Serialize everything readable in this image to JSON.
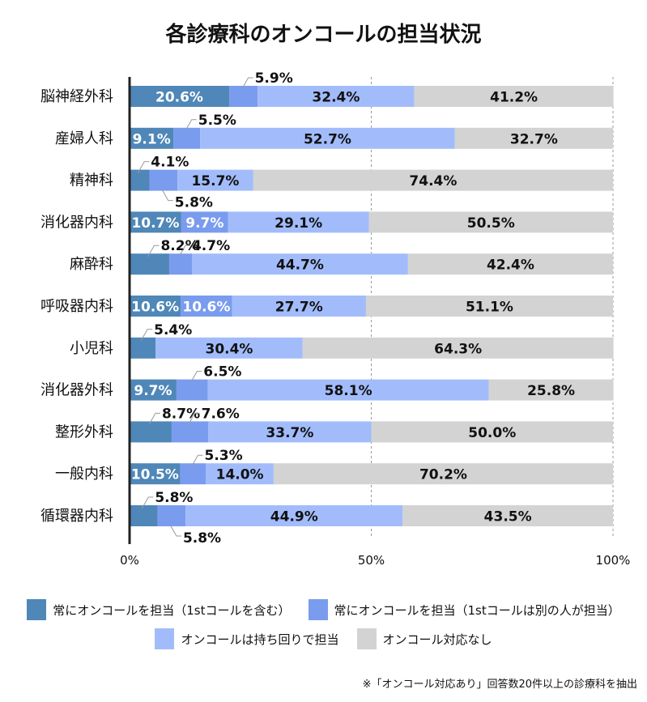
{
  "chart_data": {
    "type": "bar",
    "orientation": "horizontal",
    "stacked": true,
    "title": "各診療科のオンコールの担当状況",
    "categories": [
      "脳神経外科",
      "産婦人科",
      "精神科",
      "消化器内科",
      "麻酔科",
      "呼吸器内科",
      "小児科",
      "消化器外科",
      "整形外科",
      "一般内科",
      "循環器内科"
    ],
    "series": [
      {
        "name": "常にオンコールを担当（1stコールを含む）",
        "color": "#4f87b8",
        "values": [
          20.6,
          9.1,
          4.1,
          10.7,
          8.2,
          10.6,
          5.4,
          9.7,
          8.7,
          10.5,
          5.8
        ],
        "label_pos": [
          "in",
          "in",
          "above",
          "in",
          "above",
          "in",
          "above",
          "in",
          "above",
          "in",
          "above"
        ]
      },
      {
        "name": "常にオンコールを担当（1stコールは別の人が担当）",
        "color": "#7a9cee",
        "values": [
          5.9,
          5.5,
          5.8,
          9.7,
          4.7,
          10.6,
          0,
          6.5,
          7.6,
          5.3,
          5.8
        ],
        "label_pos": [
          "above",
          "above",
          "below",
          "in",
          "above",
          "in",
          "none",
          "above",
          "above",
          "above",
          "below"
        ]
      },
      {
        "name": "オンコールは持ち回りで担当",
        "color": "#a2bcfb",
        "values": [
          32.4,
          52.7,
          15.7,
          29.1,
          44.7,
          27.7,
          30.4,
          58.1,
          33.7,
          14.0,
          44.9
        ],
        "label_pos": [
          "in",
          "in",
          "in",
          "in",
          "in",
          "in",
          "in",
          "in",
          "in",
          "in",
          "in"
        ]
      },
      {
        "name": "オンコール対応なし",
        "color": "#d3d3d3",
        "values": [
          41.2,
          32.7,
          74.4,
          50.5,
          42.4,
          51.1,
          64.3,
          25.8,
          50.0,
          70.2,
          43.5
        ],
        "label_pos": [
          "in",
          "in",
          "in",
          "in",
          "in",
          "in",
          "in",
          "in",
          "in",
          "in",
          "in"
        ]
      }
    ],
    "xlim": [
      0,
      100
    ],
    "xticks": [
      "0%",
      "50%",
      "100%"
    ],
    "grid": "vertical dashed at 50% and 100%",
    "legend_placement": "bottom",
    "note": "※「オンコール対応あり」回答数20件以上の診療科を抽出"
  }
}
